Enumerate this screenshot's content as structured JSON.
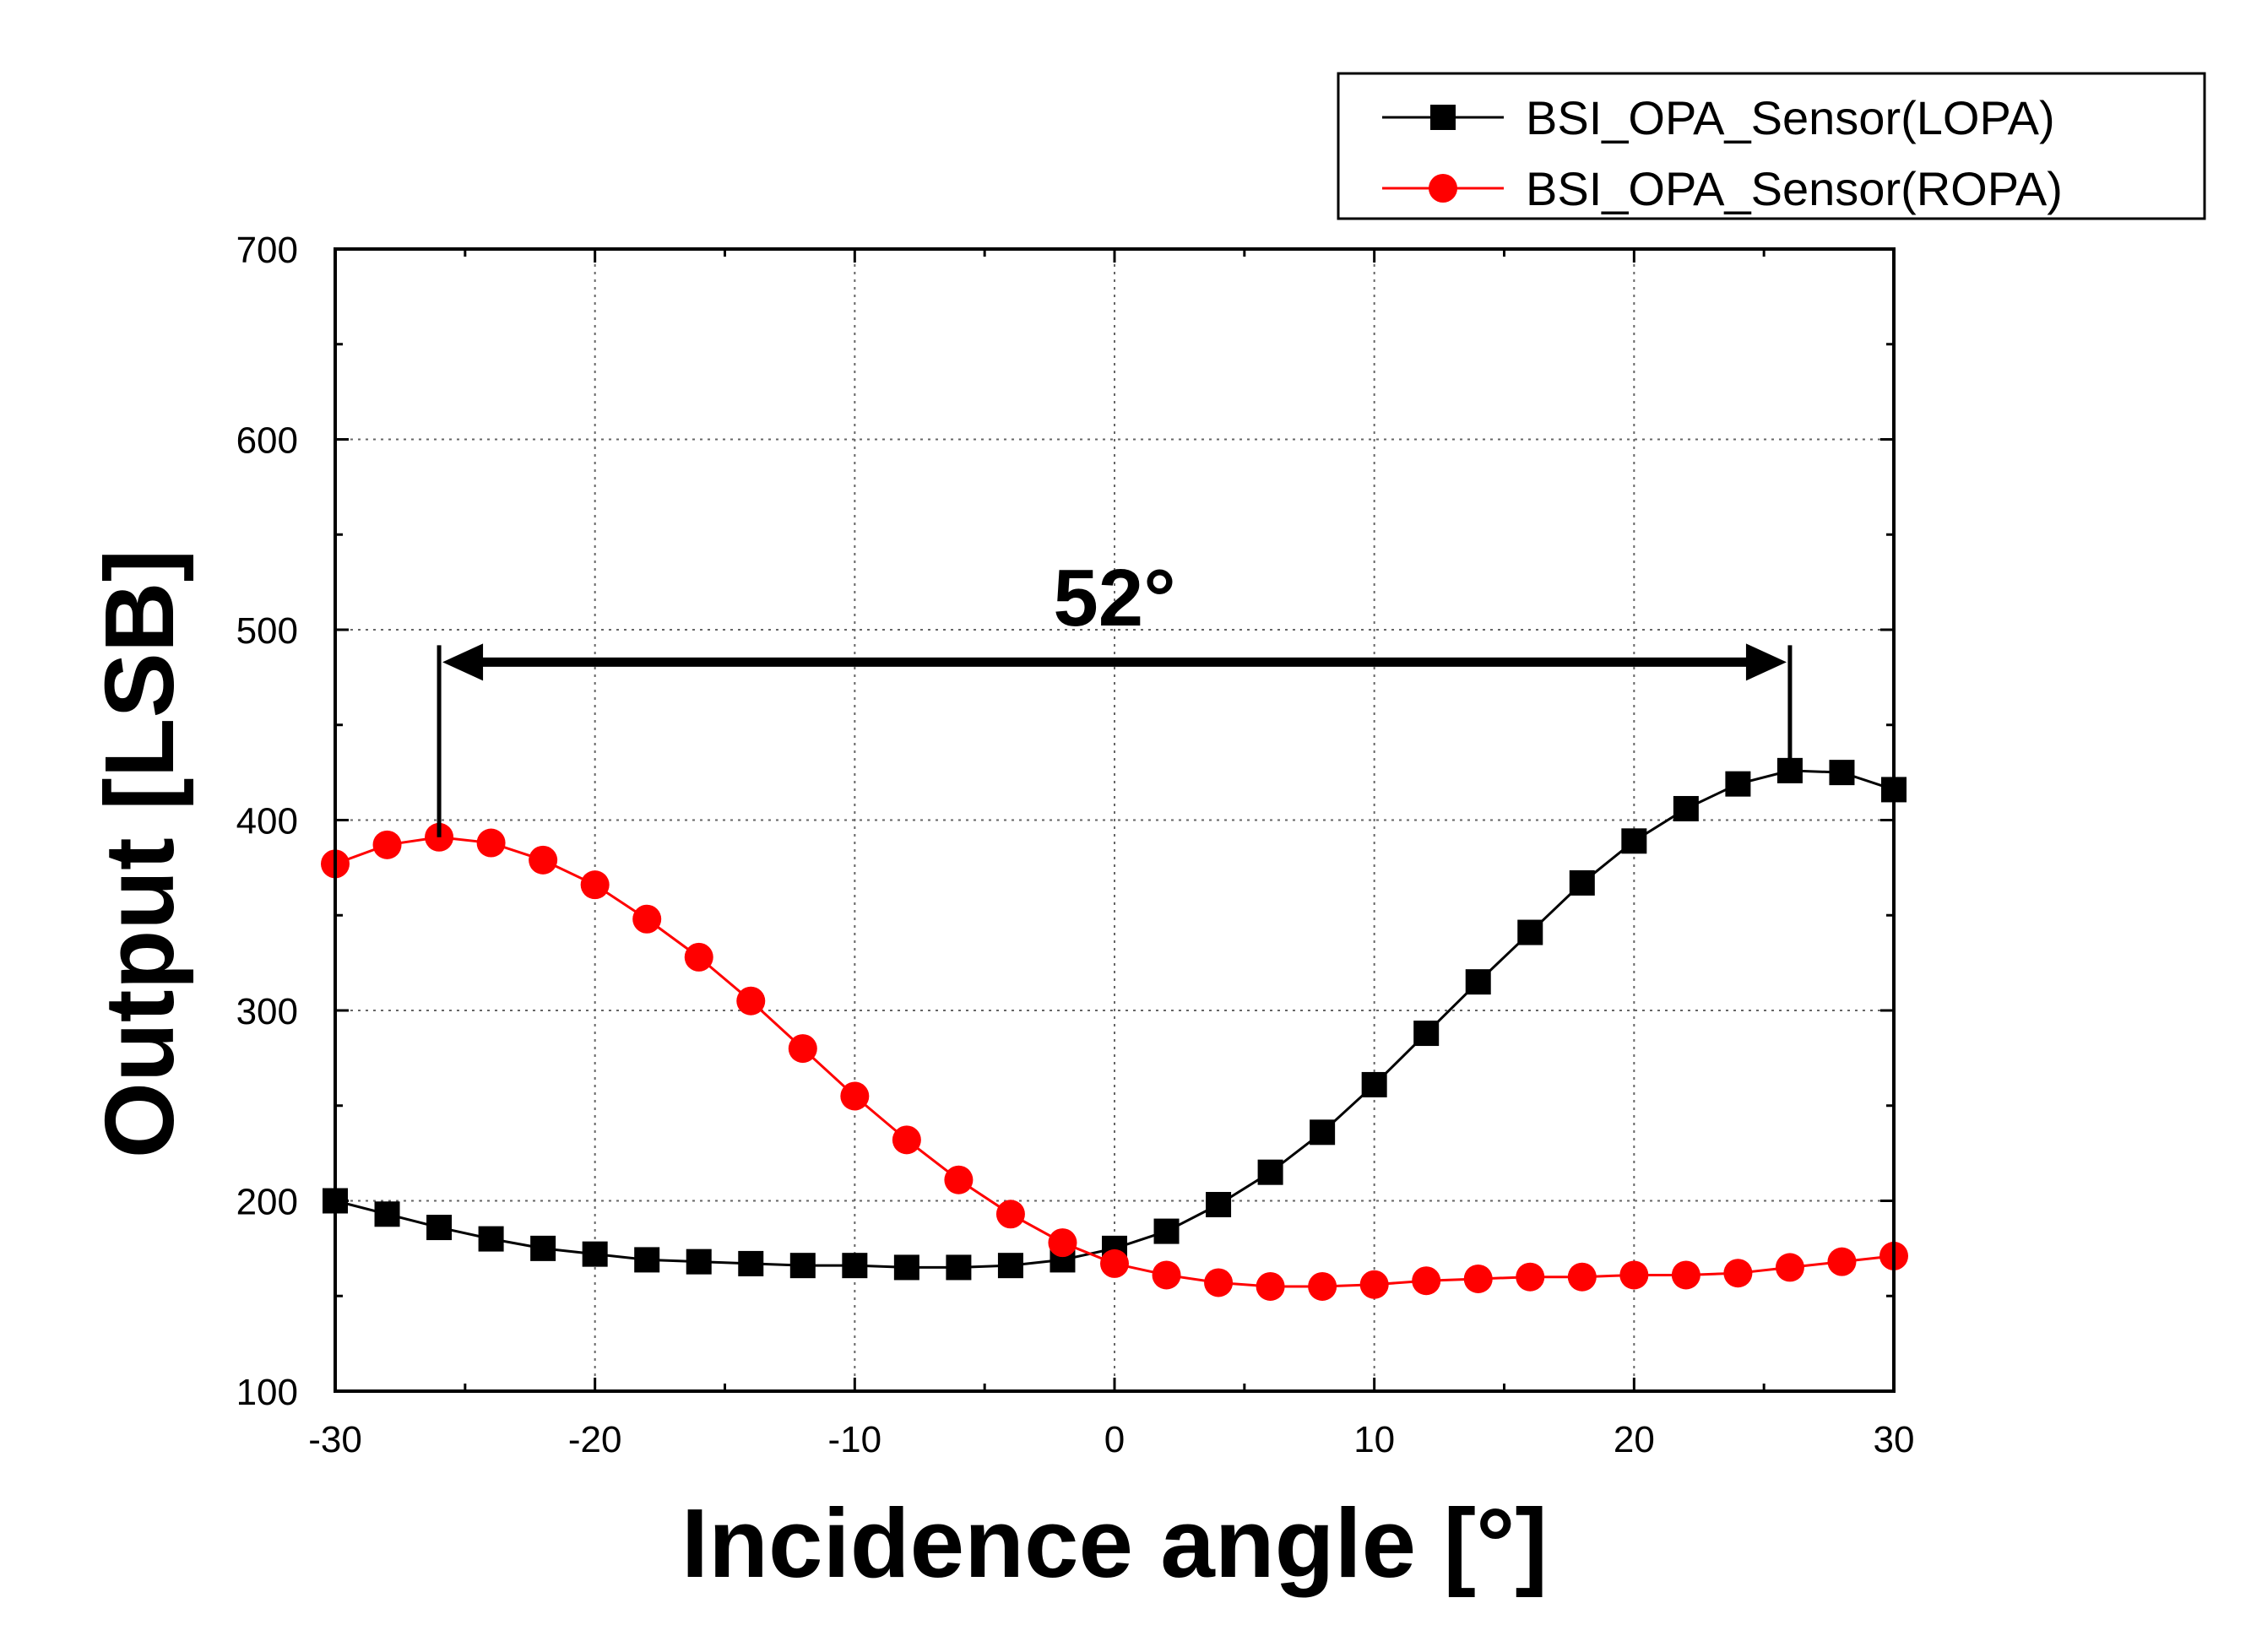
{
  "chart_data": {
    "type": "line",
    "title": "",
    "xlabel": "Incidence angle [°]",
    "ylabel": "Output [LSB]",
    "xlim": [
      -30,
      30
    ],
    "ylim": [
      100,
      700
    ],
    "xticks": [
      -30,
      -20,
      -10,
      0,
      10,
      20,
      30
    ],
    "yticks": [
      100,
      200,
      300,
      400,
      500,
      600,
      700
    ],
    "grid": true,
    "legend_position": "top-right",
    "x": [
      -30,
      -28,
      -26,
      -24,
      -22,
      -20,
      -18,
      -16,
      -14,
      -12,
      -10,
      -8,
      -6,
      -4,
      -2,
      0,
      2,
      4,
      6,
      8,
      10,
      12,
      14,
      16,
      18,
      20,
      22,
      24,
      26,
      28,
      30
    ],
    "series": [
      {
        "name": "BSI_OPA_Sensor(LOPA)",
        "color": "#000000",
        "marker": "square",
        "values": [
          200,
          193,
          186,
          180,
          175,
          172,
          169,
          168,
          167,
          166,
          166,
          165,
          165,
          166,
          169,
          175,
          184,
          198,
          215,
          236,
          261,
          288,
          315,
          341,
          367,
          389,
          406,
          419,
          426,
          425,
          416
        ]
      },
      {
        "name": "BSI_OPA_Sensor(ROPA)",
        "color": "#ff0000",
        "marker": "circle",
        "values": [
          377,
          387,
          391,
          388,
          379,
          366,
          348,
          328,
          305,
          280,
          255,
          232,
          211,
          193,
          178,
          167,
          161,
          157,
          155,
          155,
          156,
          158,
          159,
          160,
          160,
          161,
          161,
          162,
          165,
          168,
          171
        ]
      }
    ],
    "annotations": [
      {
        "text": "52°",
        "type": "double-arrow",
        "x_from": -26,
        "x_to": 26,
        "y": 483,
        "x_text": 0,
        "y_text": 520
      }
    ]
  }
}
